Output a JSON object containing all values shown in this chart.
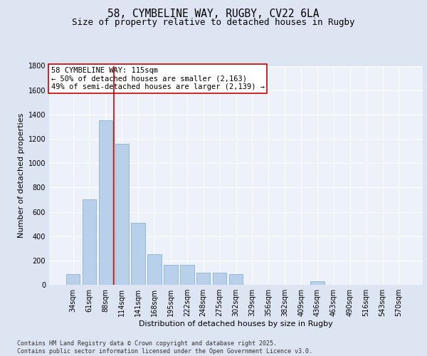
{
  "title_line1": "58, CYMBELINE WAY, RUGBY, CV22 6LA",
  "title_line2": "Size of property relative to detached houses in Rugby",
  "xlabel": "Distribution of detached houses by size in Rugby",
  "ylabel": "Number of detached properties",
  "categories": [
    "34sqm",
    "61sqm",
    "88sqm",
    "114sqm",
    "141sqm",
    "168sqm",
    "195sqm",
    "222sqm",
    "248sqm",
    "275sqm",
    "302sqm",
    "329sqm",
    "356sqm",
    "382sqm",
    "409sqm",
    "436sqm",
    "463sqm",
    "490sqm",
    "516sqm",
    "543sqm",
    "570sqm"
  ],
  "values": [
    90,
    700,
    1350,
    1160,
    510,
    250,
    165,
    165,
    100,
    100,
    90,
    0,
    0,
    0,
    0,
    30,
    0,
    0,
    0,
    0,
    0
  ],
  "bar_color": "#b8d0ea",
  "bar_edge_color": "#7aaad0",
  "background_color": "#edf1f9",
  "fig_background_color": "#dde5f3",
  "grid_color": "#ffffff",
  "annotation_text": "58 CYMBELINE WAY: 115sqm\n← 50% of detached houses are smaller (2,163)\n49% of semi-detached houses are larger (2,139) →",
  "annotation_box_color": "#ffffff",
  "annotation_box_edge_color": "#cc0000",
  "vline_color": "#cc0000",
  "vline_position": 2.5,
  "ylim": [
    0,
    1800
  ],
  "yticks": [
    0,
    200,
    400,
    600,
    800,
    1000,
    1200,
    1400,
    1600,
    1800
  ],
  "footer_text": "Contains HM Land Registry data © Crown copyright and database right 2025.\nContains public sector information licensed under the Open Government Licence v3.0.",
  "title_fontsize": 10.5,
  "subtitle_fontsize": 9,
  "axis_label_fontsize": 8,
  "tick_fontsize": 7,
  "annotation_fontsize": 7.5,
  "footer_fontsize": 6
}
